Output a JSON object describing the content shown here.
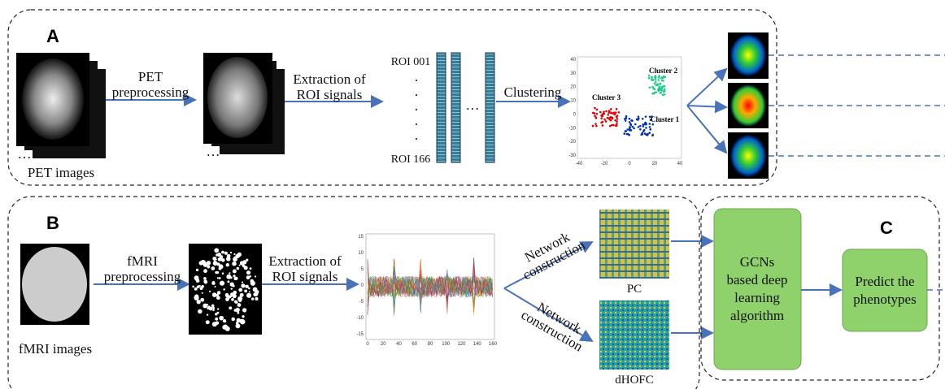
{
  "panel_a": {
    "label": "A",
    "input_caption": "PET images",
    "stack_ellipsis": "…",
    "step1": [
      "PET",
      "preprocessing"
    ],
    "step2": [
      "Extraction of",
      "ROI signals"
    ],
    "roi_first": "ROI 001",
    "roi_last": "ROI 166",
    "roi_dot": ".",
    "bar_ellipsis": "…",
    "step3": "Clustering",
    "clusters": [
      "Cluster 1",
      "Cluster 2",
      "Cluster 3"
    ],
    "scatter_yticks": [
      40,
      30,
      20,
      10,
      0,
      -10,
      -20,
      -30
    ],
    "scatter_xticks": [
      -40,
      -20,
      0,
      20,
      40
    ]
  },
  "panel_b": {
    "label": "B",
    "input_caption": "fMRI images",
    "step1": [
      "fMRI",
      "preprocessing"
    ],
    "step2": [
      "Extraction of",
      "ROI signals"
    ],
    "network_label": [
      "Network",
      "construction"
    ],
    "matrices": [
      "PC",
      "dHOFC"
    ],
    "ts_yticks": [
      15,
      10,
      5,
      0,
      -5,
      -10,
      -15
    ],
    "ts_xticks": [
      0,
      20,
      40,
      60,
      80,
      100,
      120,
      140,
      160
    ]
  },
  "panel_c": {
    "label": "C",
    "model": [
      "GCNs",
      "based deep",
      "learning",
      "algorithm"
    ],
    "output": [
      "Predict the",
      "phenotypes"
    ]
  }
}
